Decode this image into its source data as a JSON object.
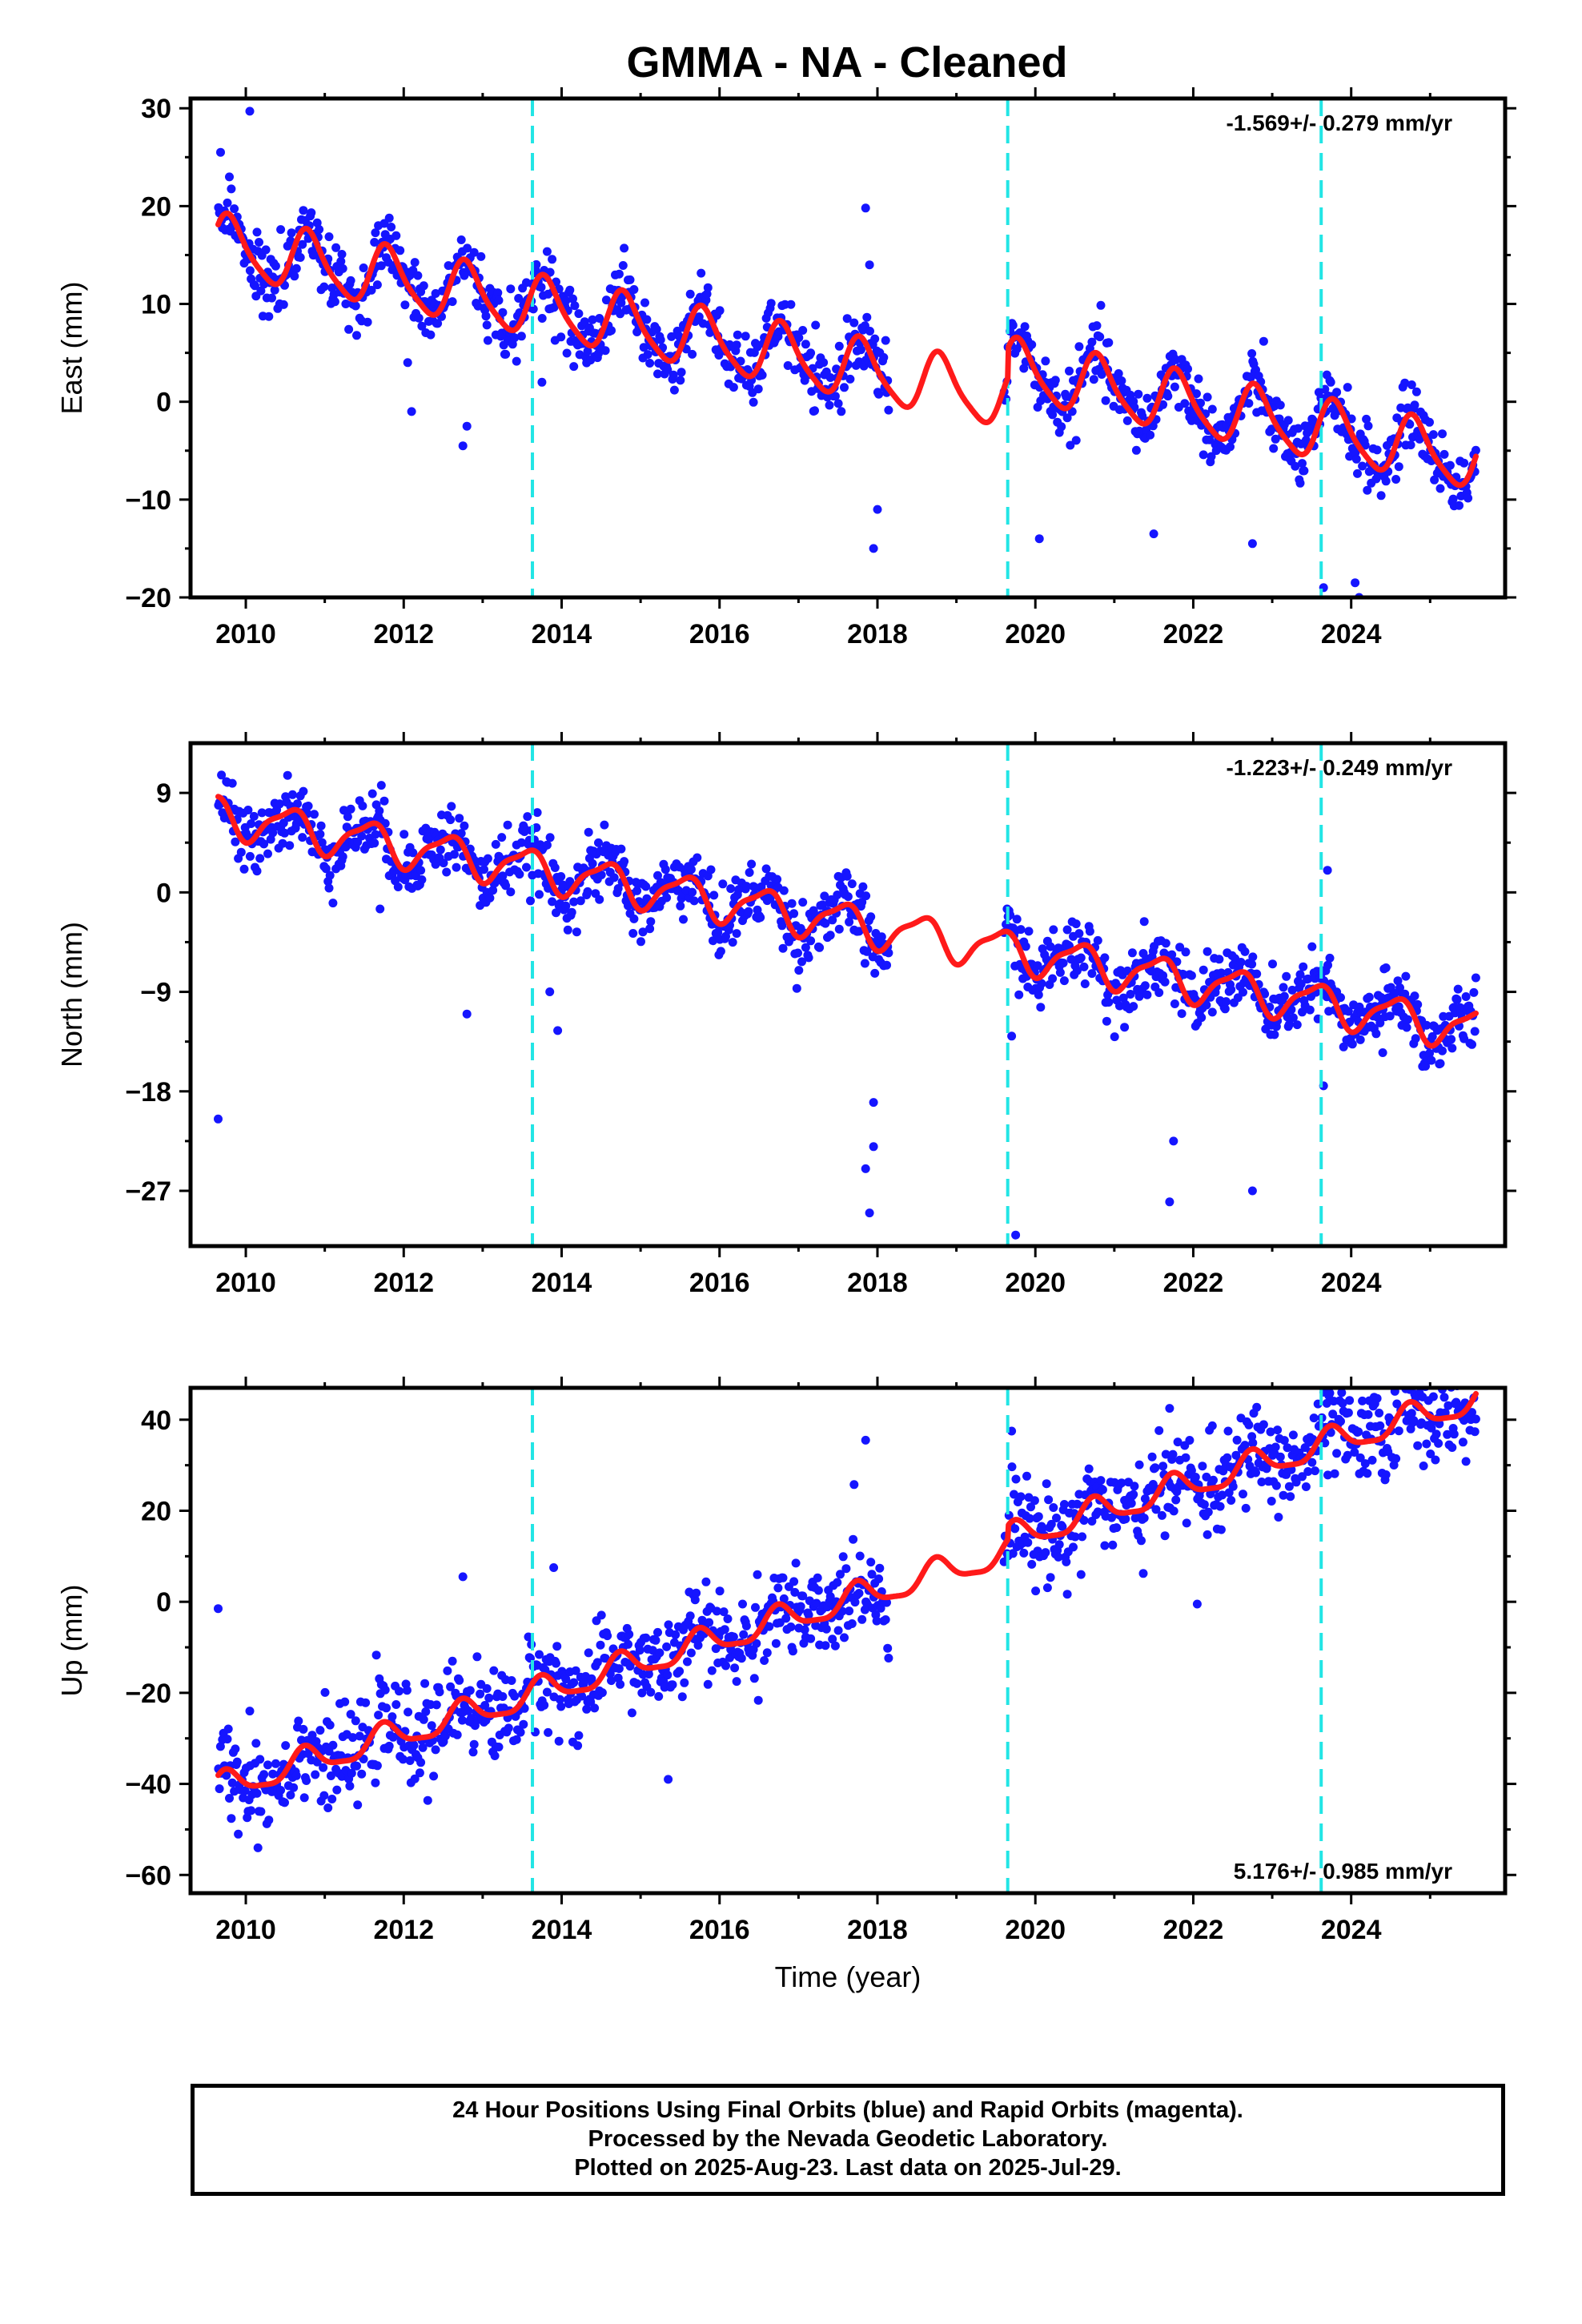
{
  "title": "GMMA  - NA - Cleaned",
  "colors": {
    "observations": "#1515ff",
    "trend": "#ff1a1a",
    "events": "#22e5e5"
  },
  "footer": {
    "line1": "24 Hour Positions Using Final Orbits (blue) and Rapid Orbits (magenta).",
    "line2": "Processed by the Nevada Geodetic Laboratory.",
    "line3": "Plotted on 2025-Aug-23. Last data on 2025-Jul-29."
  },
  "chart_data": [
    {
      "type": "scatter",
      "name": "east",
      "ylabel": "East (mm)",
      "xlabel": "",
      "xlim": [
        2009.3,
        2025.95
      ],
      "ylim": [
        -20,
        31
      ],
      "x_ticks": [
        2010,
        2012,
        2014,
        2016,
        2018,
        2020,
        2022,
        2024
      ],
      "y_ticks": [
        30,
        20,
        10,
        0,
        -10,
        -20
      ],
      "rate_label": "-1.569+/- 0.279 mm/yr",
      "rate_position": "top-right",
      "event_lines": [
        2013.63,
        2019.65,
        2023.62
      ],
      "trend": {
        "offset": 16.0,
        "rate": -1.569,
        "annual_amplitude": 3.0,
        "annual_phase": 0.55,
        "semiannual_amplitude": 0.6,
        "start": 2009.65,
        "end": 2025.58,
        "steps": [
          [
            2019.65,
            3.0
          ]
        ]
      },
      "data_gap": [
        2018.15,
        2019.6
      ],
      "scatter_sd": 1.6,
      "outliers": [
        [
          2009.68,
          25.5
        ],
        [
          2010.05,
          29.7
        ],
        [
          2012.05,
          4.0
        ],
        [
          2012.1,
          -1.0
        ],
        [
          2012.75,
          -4.5
        ],
        [
          2012.8,
          -2.5
        ],
        [
          2013.75,
          2.0
        ],
        [
          2017.85,
          19.8
        ],
        [
          2017.9,
          14.0
        ],
        [
          2017.95,
          -15.0
        ],
        [
          2018.0,
          -11.0
        ],
        [
          2020.05,
          -14.0
        ],
        [
          2021.5,
          -13.5
        ],
        [
          2022.75,
          -14.5
        ],
        [
          2023.65,
          -19.0
        ],
        [
          2024.05,
          -18.5
        ],
        [
          2024.1,
          -20.0
        ]
      ]
    },
    {
      "type": "scatter",
      "name": "north",
      "ylabel": "North (mm)",
      "xlabel": "",
      "xlim": [
        2009.3,
        2025.95
      ],
      "ylim": [
        -32,
        13.5
      ],
      "x_ticks": [
        2010,
        2012,
        2014,
        2016,
        2018,
        2020,
        2022,
        2024
      ],
      "y_ticks": [
        9,
        0,
        -9,
        -18,
        -27
      ],
      "rate_label": "-1.223+/- 0.249 mm/yr",
      "rate_position": "top-right",
      "event_lines": [
        2013.63,
        2019.65,
        2023.62
      ],
      "trend": {
        "offset": 7.0,
        "rate": -1.223,
        "annual_amplitude": 1.7,
        "annual_phase": 0.3,
        "semiannual_amplitude": 0.5,
        "start": 2009.65,
        "end": 2025.58,
        "steps": []
      },
      "data_gap": [
        2018.15,
        2019.6
      ],
      "scatter_sd": 1.5,
      "outliers": [
        [
          2009.65,
          -20.5
        ],
        [
          2011.7,
          -1.5
        ],
        [
          2012.8,
          -11.0
        ],
        [
          2013.85,
          -9.0
        ],
        [
          2013.95,
          -12.5
        ],
        [
          2017.85,
          -25.0
        ],
        [
          2017.9,
          -29.0
        ],
        [
          2017.95,
          -19.0
        ],
        [
          2017.95,
          -23.0
        ],
        [
          2019.7,
          -13.0
        ],
        [
          2019.75,
          -31.0
        ],
        [
          2021.7,
          -28.0
        ],
        [
          2021.75,
          -22.5
        ],
        [
          2022.75,
          -27.0
        ],
        [
          2023.65,
          -17.5
        ],
        [
          2023.7,
          2.0
        ],
        [
          2024.4,
          -14.5
        ]
      ]
    },
    {
      "type": "scatter",
      "name": "up",
      "ylabel": "Up (mm)",
      "xlabel": "Time (year)",
      "xlim": [
        2009.3,
        2025.95
      ],
      "ylim": [
        -64,
        47
      ],
      "x_ticks": [
        2010,
        2012,
        2014,
        2016,
        2018,
        2020,
        2022,
        2024
      ],
      "y_ticks": [
        40,
        20,
        0,
        -20,
        -40,
        -60
      ],
      "rate_label": "5.176+/- 0.985 mm/yr",
      "rate_position": "bottom-right",
      "event_lines": [
        2013.63,
        2019.65,
        2023.62
      ],
      "trend": {
        "offset": -41.0,
        "rate": 5.176,
        "annual_amplitude": 3.0,
        "annual_phase": 0.5,
        "semiannual_amplitude": 0.8,
        "start": 2009.65,
        "end": 2025.58,
        "steps": [
          [
            2019.65,
            3.0
          ]
        ]
      },
      "data_gap": [
        2018.15,
        2019.6
      ],
      "scatter_sd": 5.0,
      "outliers": [
        [
          2009.65,
          -1.5
        ],
        [
          2010.05,
          -24.0
        ],
        [
          2012.75,
          5.5
        ],
        [
          2013.9,
          7.5
        ],
        [
          2015.35,
          -39.0
        ],
        [
          2017.85,
          35.5
        ],
        [
          2019.7,
          37.5
        ],
        [
          2021.7,
          42.5
        ],
        [
          2022.05,
          -0.5
        ],
        [
          2024.3,
          43.5
        ]
      ]
    }
  ]
}
